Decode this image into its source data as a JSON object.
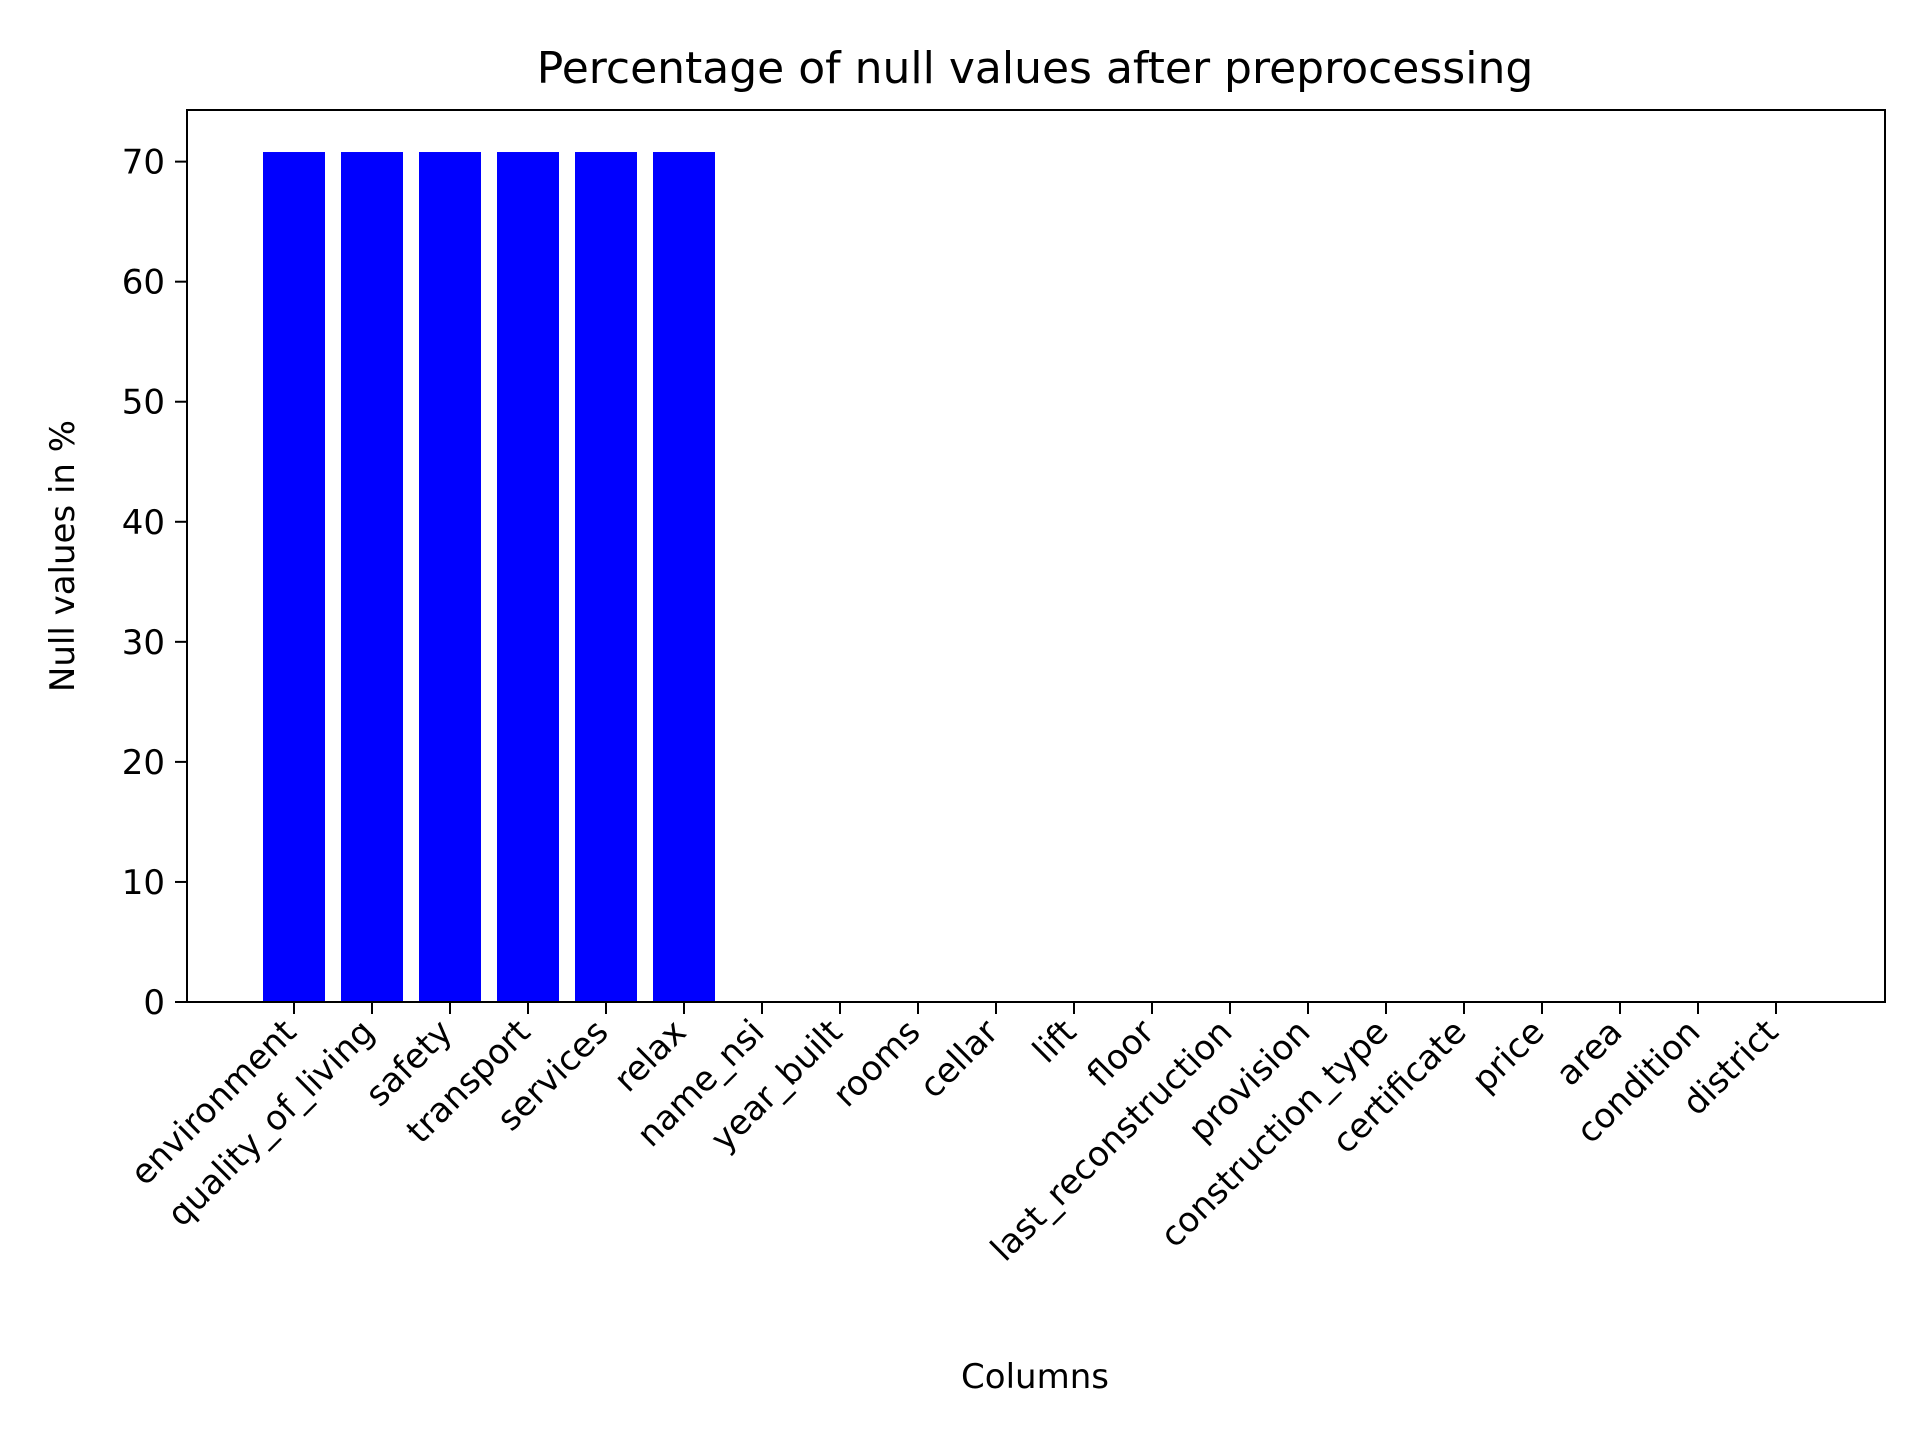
{
  "chart_data": {
    "type": "bar",
    "title": "Percentage of null values after preprocessing",
    "xlabel": "Columns",
    "ylabel": "Null values in %",
    "categories": [
      "environment",
      "quality_of_living",
      "safety",
      "transport",
      "services",
      "relax",
      "name_nsi",
      "year_built",
      "rooms",
      "cellar",
      "lift",
      "floor",
      "last_reconstruction",
      "provision",
      "construction_type",
      "certificate",
      "price",
      "area",
      "condition",
      "district"
    ],
    "values": [
      70.8,
      70.8,
      70.8,
      70.8,
      70.8,
      70.8,
      0,
      0,
      0,
      0,
      0,
      0,
      0,
      0,
      0,
      0,
      0,
      0,
      0,
      0
    ],
    "ylim": [
      0,
      74.3
    ],
    "yticks": [
      0,
      10,
      20,
      30,
      40,
      50,
      60,
      70
    ],
    "bar_color": "#0000ff",
    "grid": false,
    "legend": "none"
  }
}
